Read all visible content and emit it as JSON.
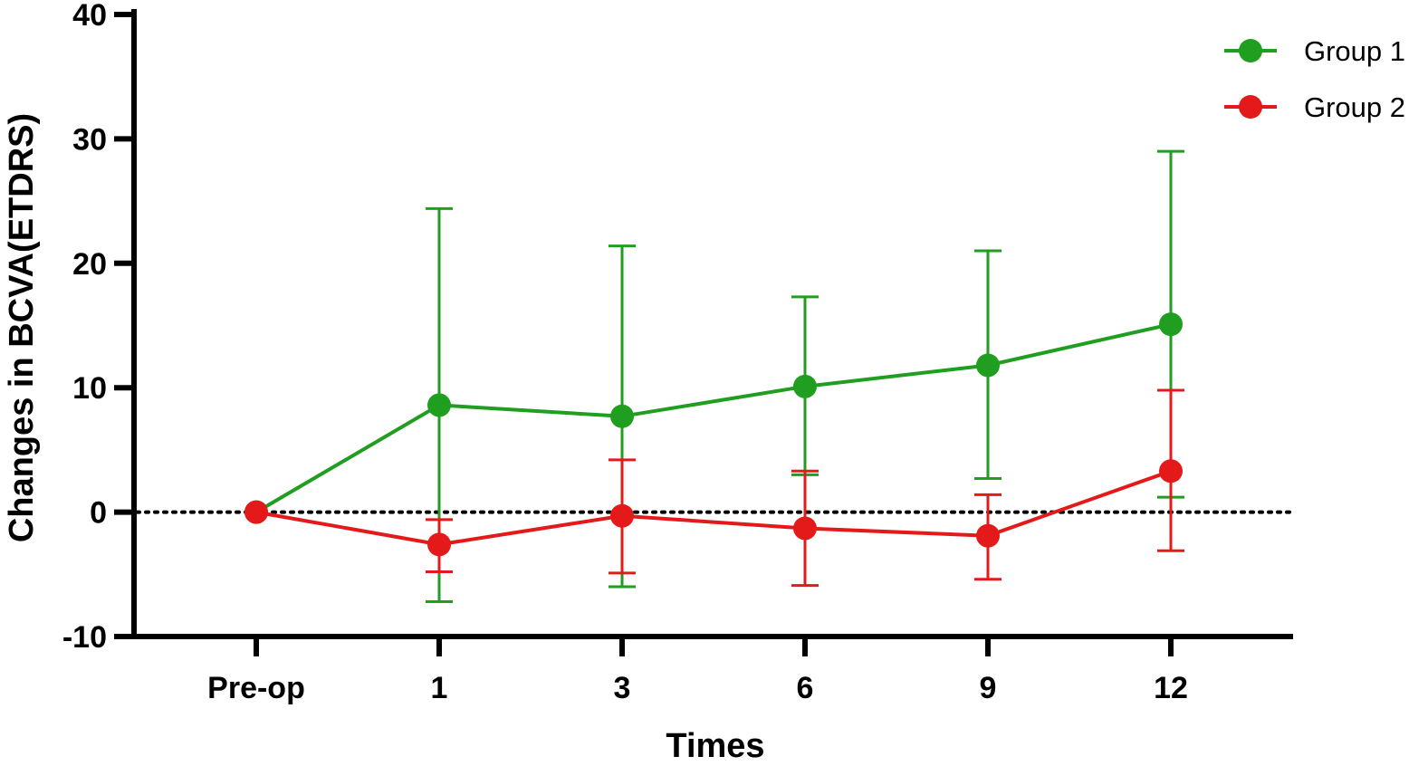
{
  "chart_data": {
    "type": "line",
    "title": "",
    "xlabel": "Times",
    "ylabel": "Changes in BCVA(ETDRS)",
    "categories": [
      "Pre-op",
      "1",
      "3",
      "6",
      "9",
      "12"
    ],
    "ylim": [
      -10,
      40
    ],
    "yticks": [
      -10,
      0,
      10,
      20,
      30,
      40
    ],
    "reference_line": {
      "y": 0,
      "style": "dotted"
    },
    "grid": false,
    "legend_position": "top-right",
    "series": [
      {
        "name": "Group 1",
        "color": "#1f9e1f",
        "values": [
          0,
          8.6,
          7.7,
          10.1,
          11.8,
          15.1
        ],
        "error_upper": [
          0,
          24.4,
          21.4,
          17.3,
          21.0,
          29.0
        ],
        "error_lower": [
          0,
          -7.2,
          -6.0,
          3.0,
          2.7,
          1.2
        ]
      },
      {
        "name": "Group 2",
        "color": "#e41a1a",
        "values": [
          0,
          -2.6,
          -0.3,
          -1.3,
          -1.9,
          3.3
        ],
        "error_upper": [
          0,
          -0.6,
          4.2,
          3.3,
          1.4,
          9.8
        ],
        "error_lower": [
          0,
          -4.8,
          -4.9,
          -5.9,
          -5.4,
          -3.1
        ]
      }
    ]
  }
}
